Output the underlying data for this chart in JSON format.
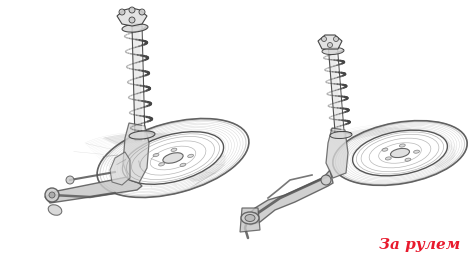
{
  "background_color": "#ffffff",
  "figsize": [
    4.74,
    2.62
  ],
  "dpi": 100,
  "watermark_text": "За рулем",
  "watermark_color": "#e8192c",
  "watermark_fontsize": 11,
  "watermark_fontstyle": "italic",
  "watermark_fontweight": "bold",
  "line_color": "#555555",
  "light_color": "#888888",
  "very_light": "#bbbbbb",
  "dark_color": "#333333"
}
